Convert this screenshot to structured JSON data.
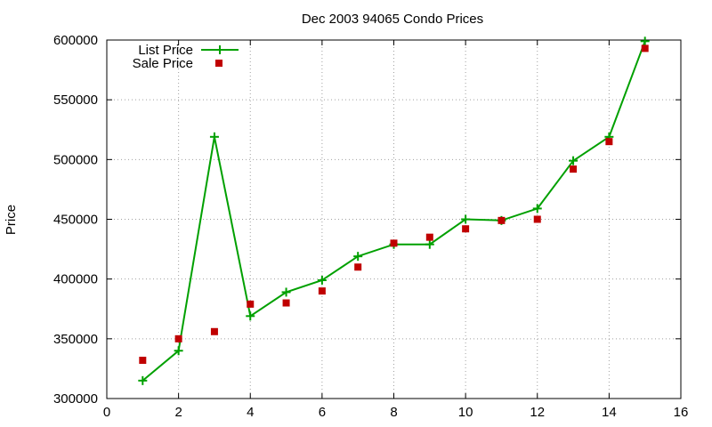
{
  "chart_data": {
    "type": "line",
    "title": "Dec 2003 94065 Condo Prices",
    "xlabel": "",
    "ylabel": "Price",
    "xlim": [
      0,
      16
    ],
    "ylim": [
      300000,
      600000
    ],
    "x_ticks": [
      0,
      2,
      4,
      6,
      8,
      10,
      12,
      14,
      16
    ],
    "y_ticks": [
      300000,
      350000,
      400000,
      450000,
      500000,
      550000,
      600000
    ],
    "grid": true,
    "legend_position": "top-left",
    "series": [
      {
        "name": "List Price",
        "style": "line-with-plus-markers",
        "color": "#00a000",
        "x": [
          1,
          2,
          3,
          4,
          5,
          6,
          7,
          8,
          9,
          10,
          11,
          12,
          13,
          14,
          15
        ],
        "values": [
          315000,
          340000,
          519000,
          369000,
          389000,
          399000,
          419000,
          429000,
          429000,
          450000,
          449000,
          459000,
          499000,
          519000,
          599000
        ]
      },
      {
        "name": "Sale Price",
        "style": "square-markers",
        "color": "#c00000",
        "x": [
          1,
          2,
          3,
          4,
          5,
          6,
          7,
          8,
          9,
          10,
          11,
          12,
          13,
          14,
          15
        ],
        "values": [
          332000,
          350000,
          356000,
          379000,
          380000,
          390000,
          410000,
          430000,
          435000,
          442000,
          449000,
          450000,
          492000,
          515000,
          593000
        ]
      }
    ]
  }
}
